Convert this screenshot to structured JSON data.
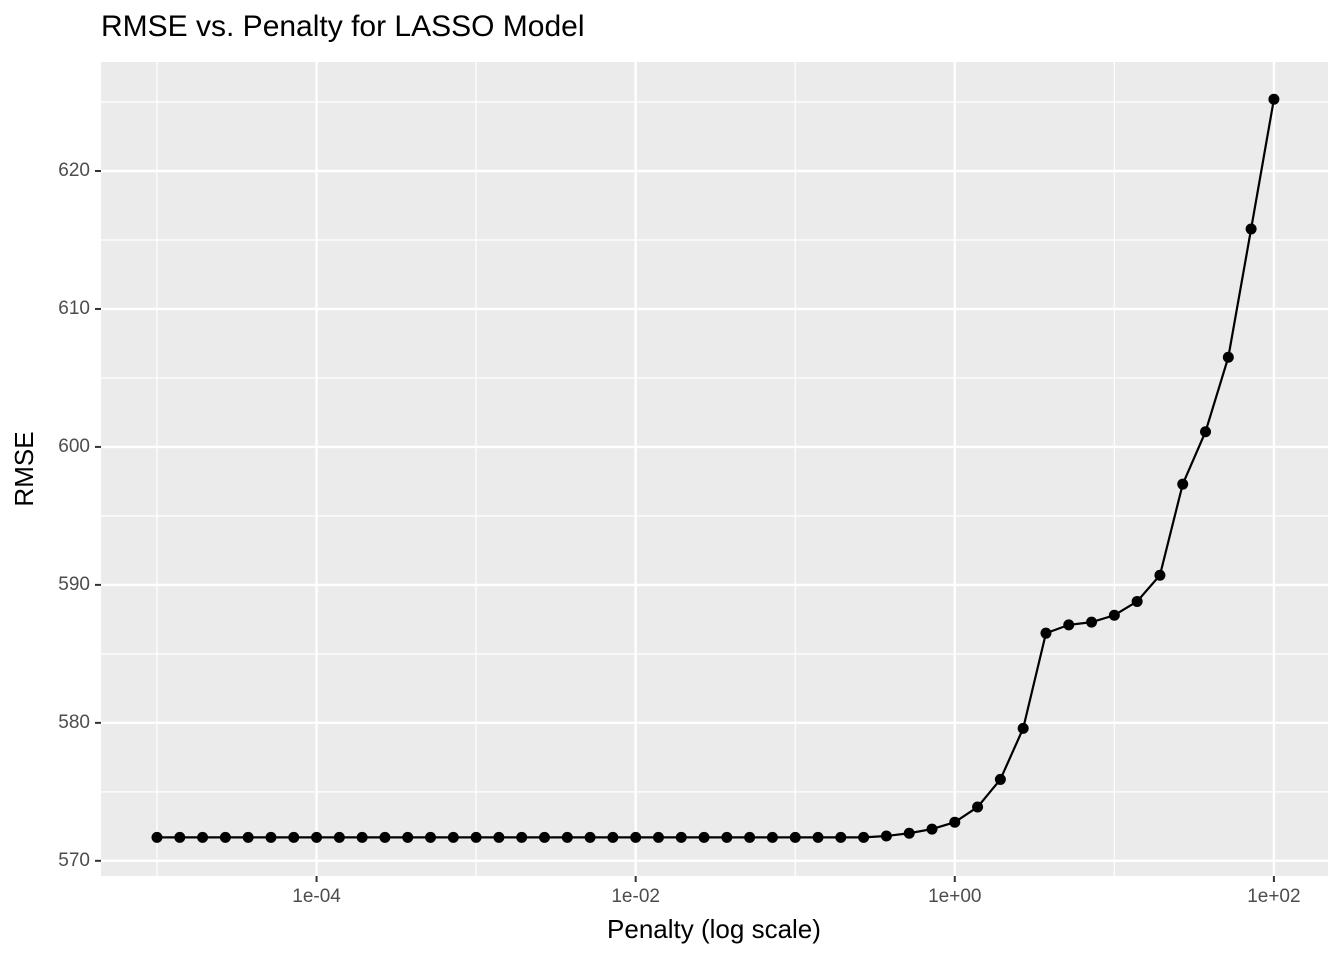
{
  "chart_data": {
    "type": "line",
    "title": "RMSE vs. Penalty for LASSO Model",
    "x_label": "Penalty (log scale)",
    "y_label": "RMSE",
    "x_log": true,
    "grid": true,
    "color": "#000000",
    "x": [
      1e-05,
      1.389495e-05,
      1.930698e-05,
      2.682696e-05,
      3.727594e-05,
      5.179475e-05,
      7.196857e-05,
      0.0001,
      0.0001389495,
      0.0001930698,
      0.0002682696,
      0.0003727594,
      0.0005179475,
      0.0007196857,
      0.001,
      0.001389495,
      0.001930698,
      0.002682696,
      0.003727594,
      0.005179475,
      0.007196857,
      0.01,
      0.01389495,
      0.01930698,
      0.02682696,
      0.03727594,
      0.05179475,
      0.07196857,
      0.1,
      0.1389495,
      0.1930698,
      0.2682696,
      0.3727594,
      0.5179475,
      0.7196857,
      1,
      1.389495,
      1.930698,
      2.682696,
      3.727594,
      5.179475,
      7.196857,
      10,
      13.89495,
      19.30698,
      26.82696,
      37.27594,
      51.79475,
      71.96857,
      100
    ],
    "values": [
      571.7,
      571.7,
      571.7,
      571.7,
      571.7,
      571.7,
      571.7,
      571.7,
      571.7,
      571.7,
      571.7,
      571.7,
      571.7,
      571.7,
      571.7,
      571.7,
      571.7,
      571.7,
      571.7,
      571.7,
      571.7,
      571.7,
      571.7,
      571.7,
      571.7,
      571.7,
      571.7,
      571.7,
      571.7,
      571.7,
      571.7,
      571.7,
      571.8,
      572.0,
      572.3,
      572.8,
      573.9,
      575.9,
      579.6,
      586.5,
      587.1,
      587.3,
      587.8,
      588.8,
      590.7,
      597.3,
      601.1,
      606.5,
      615.8,
      625.2
    ],
    "xlim": [
      4.457e-06,
      218.3
    ],
    "ylim": [
      568.9,
      627.9
    ],
    "xticks": [
      {
        "value": 0.0001,
        "label": "1e-04"
      },
      {
        "value": 0.01,
        "label": "1e-02"
      },
      {
        "value": 1,
        "label": "1e+00"
      },
      {
        "value": 100,
        "label": "1e+02"
      }
    ],
    "x_minor_ticks": [
      1e-05,
      0.001,
      0.1,
      10
    ],
    "yticks": [
      570,
      580,
      590,
      600,
      610,
      620
    ],
    "y_minor_ticks": [
      575,
      585,
      595,
      605,
      615,
      625
    ]
  }
}
